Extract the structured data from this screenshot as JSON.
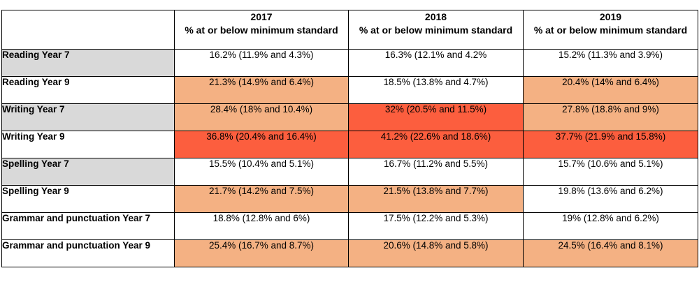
{
  "colors": {
    "none": "#ffffff",
    "light": "#f4b183",
    "dark": "#fc5e3e",
    "label_gray": "#d9d9d9"
  },
  "header": {
    "corner": "",
    "columns": [
      {
        "year": "2017",
        "subtitle": "% at or below minimum standard"
      },
      {
        "year": "2018",
        "subtitle": "% at or below minimum standard"
      },
      {
        "year": "2019",
        "subtitle": "% at or below minimum standard"
      }
    ]
  },
  "rows": [
    {
      "label": "Reading Year 7",
      "label_gray": true,
      "cells": [
        {
          "text": "16.2% (11.9% and 4.3%)",
          "level": "none"
        },
        {
          "text": "16.3% (12.1% and 4.2%",
          "level": "none"
        },
        {
          "text": "15.2% (11.3% and 3.9%)",
          "level": "none"
        }
      ]
    },
    {
      "label": "Reading Year 9",
      "label_gray": false,
      "cells": [
        {
          "text": "21.3% (14.9% and 6.4%)",
          "level": "light"
        },
        {
          "text": "18.5% (13.8% and 4.7%)",
          "level": "none"
        },
        {
          "text": "20.4% (14% and 6.4%)",
          "level": "light"
        }
      ]
    },
    {
      "label": "Writing Year 7",
      "label_gray": true,
      "cells": [
        {
          "text": "28.4% (18% and 10.4%)",
          "level": "light"
        },
        {
          "text": "32% (20.5% and 11.5%)",
          "level": "dark"
        },
        {
          "text": "27.8% (18.8% and 9%)",
          "level": "light"
        }
      ]
    },
    {
      "label": "Writing Year 9",
      "label_gray": false,
      "cells": [
        {
          "text": "36.8% (20.4% and 16.4%)",
          "level": "dark"
        },
        {
          "text": "41.2% (22.6% and 18.6%)",
          "level": "dark"
        },
        {
          "text": "37.7% (21.9% and 15.8%)",
          "level": "dark"
        }
      ]
    },
    {
      "label": "Spelling Year 7",
      "label_gray": true,
      "cells": [
        {
          "text": "15.5% (10.4% and 5.1%)",
          "level": "none"
        },
        {
          "text": "16.7% (11.2% and 5.5%)",
          "level": "none"
        },
        {
          "text": "15.7% (10.6% and 5.1%)",
          "level": "none"
        }
      ]
    },
    {
      "label": "Spelling Year 9",
      "label_gray": false,
      "cells": [
        {
          "text": "21.7% (14.2% and 7.5%)",
          "level": "light"
        },
        {
          "text": "21.5% (13.8% and 7.7%)",
          "level": "light"
        },
        {
          "text": "19.8% (13.6% and 6.2%)",
          "level": "none"
        }
      ]
    },
    {
      "label": "Grammar and punctuation Year 7",
      "label_gray": false,
      "cells": [
        {
          "text": "18.8% (12.8% and 6%)",
          "level": "none"
        },
        {
          "text": "17.5% (12.2% and 5.3%)",
          "level": "none"
        },
        {
          "text": "19% (12.8% and 6.2%)",
          "level": "none"
        }
      ]
    },
    {
      "label": "Grammar and punctuation Year 9",
      "label_gray": false,
      "cells": [
        {
          "text": "25.4% (16.7% and 8.7%)",
          "level": "light"
        },
        {
          "text": "20.6% (14.8% and 5.8%)",
          "level": "light"
        },
        {
          "text": "24.5% (16.4% and 8.1%)",
          "level": "light"
        }
      ]
    }
  ]
}
